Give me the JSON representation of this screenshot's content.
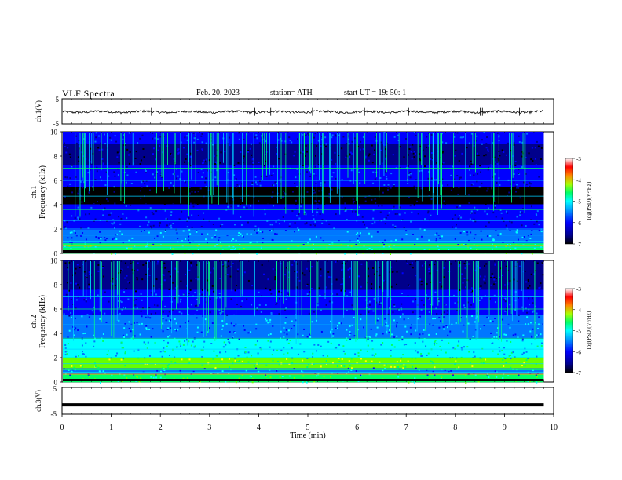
{
  "header": {
    "title": "VLF  Spectra",
    "date": "Feb. 20, 2023",
    "station": "station= ATH",
    "start": "start  UT  =    19: 50: 1"
  },
  "chart_data": [
    {
      "type": "line",
      "panel": "ch1-waveform",
      "ylabel": "ch.1(V)",
      "ylim": [
        -5,
        5
      ],
      "yticks": [
        "5",
        "-5"
      ],
      "x_range_min": [
        0,
        9.8
      ],
      "description_values": "noisy waveform around -0.2 V",
      "y_baseline": -0.2
    },
    {
      "type": "heatmap",
      "panel": "ch1-spectrogram",
      "ylabel": "ch.1\nFrequency  (kHz)",
      "ylabel_line1": "ch.1",
      "ylabel_line2": "Frequency  (kHz)",
      "ylim": [
        0,
        10
      ],
      "yticks": [
        "0",
        "2",
        "4",
        "6",
        "8",
        "10"
      ],
      "xlim": [
        0,
        9.8
      ],
      "colorbar": {
        "label": "log(PSD)(V²/Hz)",
        "range": [
          -7,
          -3
        ],
        "ticks": [
          "-3",
          "-4",
          "-5",
          "-6",
          "-7"
        ]
      }
    },
    {
      "type": "heatmap",
      "panel": "ch2-spectrogram",
      "ylabel_line1": "ch.2",
      "ylabel_line2": "Frequency  (kHz)",
      "ylim": [
        0,
        10
      ],
      "yticks": [
        "0",
        "2",
        "4",
        "6",
        "8",
        "10"
      ],
      "xlim": [
        0,
        9.8
      ],
      "colorbar": {
        "label": "log(PSD)(V²/Hz)",
        "range": [
          -7,
          -3
        ],
        "ticks": [
          "-3",
          "-4",
          "-5",
          "-6",
          "-7"
        ]
      }
    },
    {
      "type": "line",
      "panel": "ch3-waveform",
      "ylabel": "ch.3(V)",
      "ylim": [
        -5,
        5
      ],
      "yticks": [
        "5",
        "-5"
      ],
      "y_baseline": -1.5,
      "xlabel": "Time  (min)",
      "xlim": [
        0,
        10
      ],
      "xticks": [
        "0",
        "1",
        "2",
        "3",
        "4",
        "5",
        "6",
        "7",
        "8",
        "9",
        "10"
      ]
    }
  ],
  "colors": {
    "axis": "#000000",
    "colormap": [
      "#000000",
      "#00008b",
      "#0000ff",
      "#0077ff",
      "#00ffff",
      "#00ff66",
      "#66ff00",
      "#ffff00",
      "#ff8800",
      "#ff0000",
      "#ffffff"
    ]
  }
}
